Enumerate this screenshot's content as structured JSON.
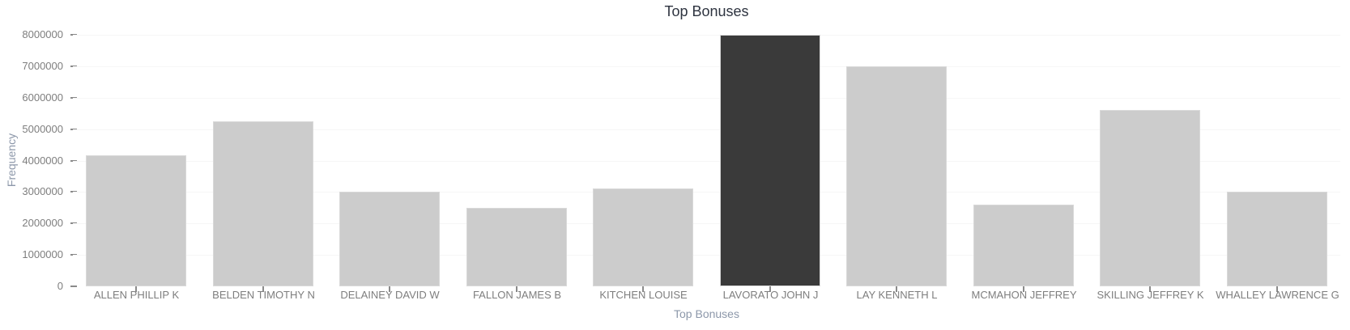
{
  "chart_data": {
    "type": "bar",
    "title": "Top Bonuses",
    "xlabel": "Top Bonuses",
    "ylabel": "Frequency",
    "categories": [
      "ALLEN PHILLIP K",
      "BELDEN TIMOTHY N",
      "DELAINEY DAVID W",
      "FALLON JAMES B",
      "KITCHEN LOUISE",
      "LAVORATO JOHN J",
      "LAY KENNETH L",
      "MCMAHON JEFFREY",
      "SKILLING JEFFREY K",
      "WHALLEY LAWRENCE G"
    ],
    "values": [
      4175000,
      5249999,
      3000000,
      2500000,
      3100000,
      8000000,
      7000000,
      2600000,
      5600000,
      3000000
    ],
    "highlight_index": 5,
    "ylim": [
      0,
      8000000
    ],
    "yticks": [
      0,
      1000000,
      2000000,
      3000000,
      4000000,
      5000000,
      6000000,
      7000000,
      8000000
    ],
    "grid": "horizontal-faint",
    "legend": "none",
    "colors": {
      "bar_default": "#cccccc",
      "bar_highlight": "#3a3a3a",
      "bar_edge": "#d9d9d9",
      "title_text": "#2e3440",
      "axis_title_text": "#8d98aa",
      "tick_label_text": "#7e7e7e",
      "tick_mark": "#8a8a8a",
      "gridline": "#f6f6f6",
      "background": "#ffffff"
    }
  }
}
